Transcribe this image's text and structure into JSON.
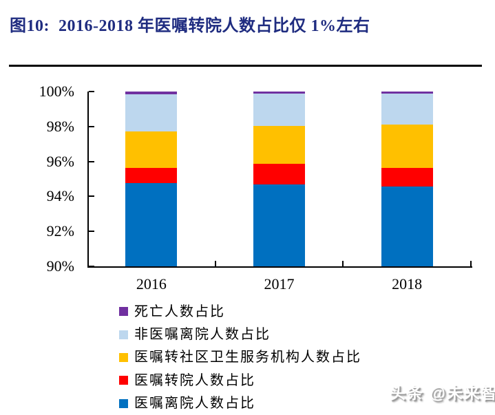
{
  "figure": {
    "title": "图10:  2016-2018 年医嘱转院人数占比仅 1%左右",
    "title_color": "#1F2C80"
  },
  "watermark": {
    "text": "头条 @未来智库"
  },
  "chart_data": {
    "type": "bar",
    "stacked": true,
    "stacked_to_100": true,
    "title": "",
    "xlabel": "",
    "ylabel": "",
    "categories": [
      "2016",
      "2017",
      "2018"
    ],
    "series": [
      {
        "name": "医嘱离院人数占比",
        "color": "#0070C0",
        "values": [
          94.75,
          94.7,
          94.55
        ]
      },
      {
        "name": "医嘱转院人数占比",
        "color": "#FF0000",
        "values": [
          0.9,
          1.15,
          1.1
        ]
      },
      {
        "name": "医嘱转社区卫生服务机构人数占比",
        "color": "#FFC000",
        "values": [
          2.05,
          2.2,
          2.45
        ]
      },
      {
        "name": "非医嘱离院人数占比",
        "color": "#BDD7EE",
        "values": [
          2.15,
          1.85,
          1.8
        ]
      },
      {
        "name": "死亡人数占比",
        "color": "#7030A0",
        "values": [
          0.15,
          0.1,
          0.1
        ]
      }
    ],
    "legend_order_top_to_bottom": [
      "死亡人数占比",
      "非医嘱离院人数占比",
      "医嘱转社区卫生服务机构人数占比",
      "医嘱转院人数占比",
      "医嘱离院人数占比"
    ],
    "legend_position": "bottom-left",
    "y_ticks": [
      "100%",
      "98%",
      "96%",
      "94%",
      "92%",
      "90%"
    ],
    "ylim": [
      90,
      100
    ],
    "grid": false,
    "axis_color": "#000000",
    "text_color": "#000000"
  }
}
